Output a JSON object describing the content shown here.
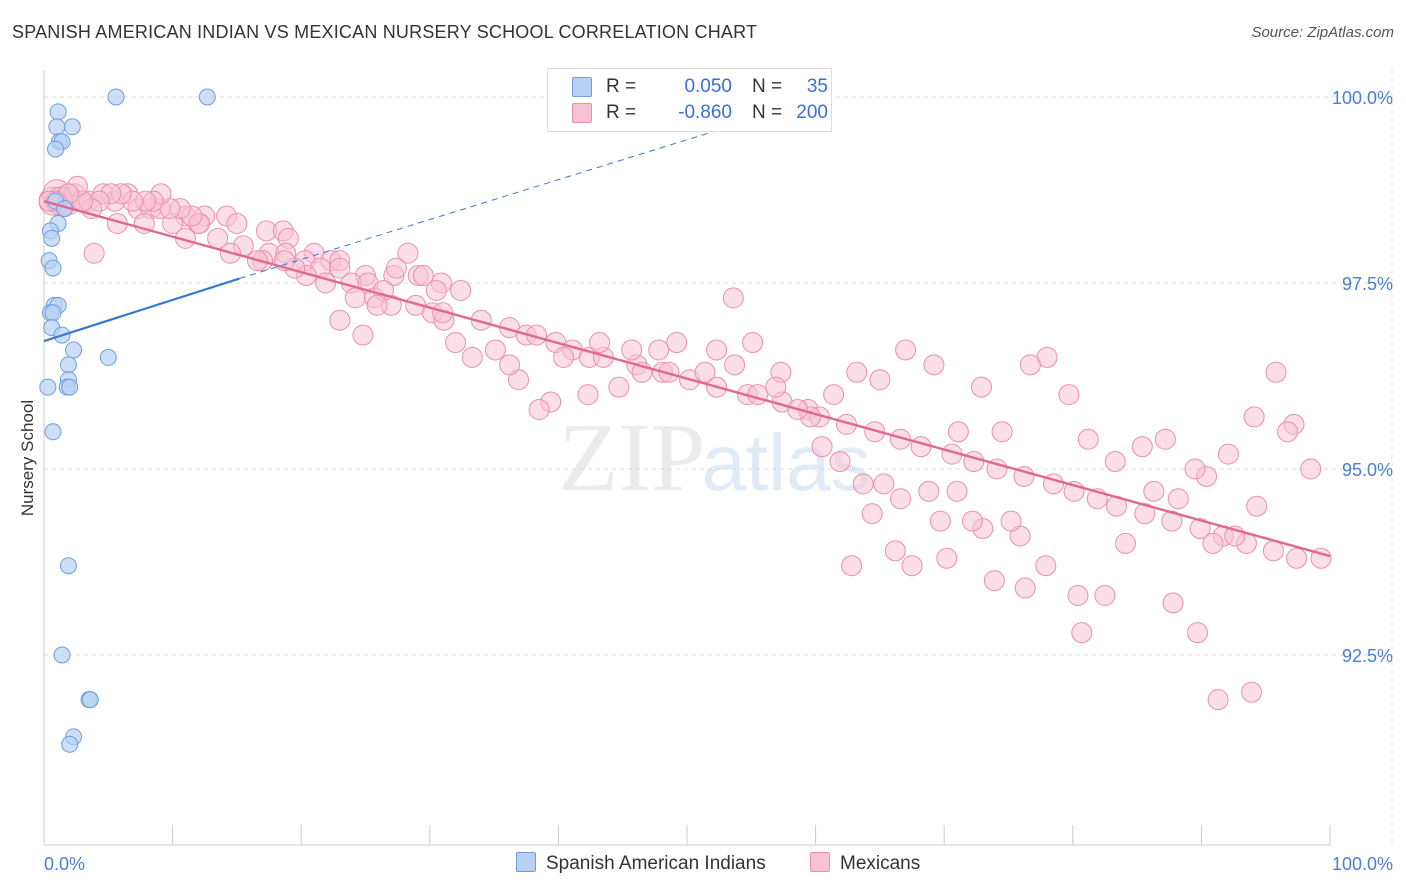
{
  "title": "SPANISH AMERICAN INDIAN VS MEXICAN NURSERY SCHOOL CORRELATION CHART",
  "source": "Source: ZipAtlas.com",
  "watermark": {
    "zip": "ZIP",
    "atlas": "atlas"
  },
  "legend": {
    "r_label": "R =",
    "n_label": "N =",
    "rows": [
      {
        "r": "0.050",
        "n": "35"
      },
      {
        "r": "-0.860",
        "n": "200"
      }
    ]
  },
  "colors": {
    "blue_fill": "#b8d1f3",
    "blue_stroke": "#6e9ee0",
    "blue_line": "#3a78d0",
    "pink_fill": "#f7c3d4",
    "pink_stroke": "#ec8fb0",
    "pink_line": "#e0688f",
    "grid": "#dddddd",
    "axis_text": "#4a7fd6"
  },
  "chart_data": {
    "type": "scatter",
    "title": "SPANISH AMERICAN INDIAN VS MEXICAN NURSERY SCHOOL CORRELATION CHART",
    "xlabel": "",
    "ylabel": "Nursery School",
    "xlim": [
      0,
      100
    ],
    "ylim": [
      90.0,
      100.4
    ],
    "x_tick_labels": [
      "0.0%",
      "100.0%"
    ],
    "y_ticks": [
      92.5,
      95.0,
      97.5,
      100.0
    ],
    "y_tick_labels": [
      "92.5%",
      "95.0%",
      "97.5%",
      "100.0%"
    ],
    "grid": true,
    "series": [
      {
        "name": "Spanish American Indians",
        "color": "blue",
        "R": 0.05,
        "N": 35,
        "trend": {
          "x0": 0,
          "y0": 96.72,
          "x1": 15.2,
          "y1": 97.56
        },
        "trend_ext": {
          "x0": 15.2,
          "y0": 97.56,
          "x1": 57,
          "y1": 99.8
        },
        "points": [
          [
            5.6,
            100.0
          ],
          [
            12.7,
            100.0
          ],
          [
            1.1,
            99.8
          ],
          [
            2.2,
            99.6
          ],
          [
            1.0,
            99.6
          ],
          [
            1.2,
            99.4
          ],
          [
            1.4,
            99.4
          ],
          [
            0.9,
            99.3
          ],
          [
            0.9,
            98.6
          ],
          [
            1.6,
            98.5
          ],
          [
            1.1,
            98.3
          ],
          [
            0.5,
            98.2
          ],
          [
            0.6,
            98.1
          ],
          [
            0.4,
            97.8
          ],
          [
            0.7,
            97.7
          ],
          [
            0.8,
            97.2
          ],
          [
            1.1,
            97.2
          ],
          [
            0.5,
            97.1
          ],
          [
            0.7,
            97.1
          ],
          [
            0.6,
            96.9
          ],
          [
            1.4,
            96.8
          ],
          [
            2.3,
            96.6
          ],
          [
            5.0,
            96.5
          ],
          [
            1.9,
            96.4
          ],
          [
            1.9,
            96.2
          ],
          [
            1.8,
            96.1
          ],
          [
            2.0,
            96.1
          ],
          [
            0.3,
            96.1
          ],
          [
            0.7,
            95.5
          ],
          [
            1.9,
            93.7
          ],
          [
            1.4,
            92.5
          ],
          [
            3.5,
            91.9
          ],
          [
            3.6,
            91.9
          ],
          [
            2.3,
            91.4
          ],
          [
            2.0,
            91.3
          ]
        ]
      },
      {
        "name": "Mexicans",
        "color": "pink",
        "R": -0.86,
        "N": 200,
        "trend": {
          "x0": 0,
          "y0": 98.6,
          "x1": 100,
          "y1": 93.83
        },
        "points": [
          [
            0.7,
            98.6
          ],
          [
            1.0,
            98.7
          ],
          [
            1.3,
            98.6
          ],
          [
            1.8,
            98.6
          ],
          [
            2.4,
            98.7
          ],
          [
            2.8,
            98.6
          ],
          [
            3.5,
            98.6
          ],
          [
            4.6,
            98.7
          ],
          [
            5.5,
            98.6
          ],
          [
            6.5,
            98.7
          ],
          [
            7.3,
            98.5
          ],
          [
            8.3,
            98.5
          ],
          [
            9.0,
            98.5
          ],
          [
            11.0,
            98.4
          ],
          [
            12.5,
            98.4
          ],
          [
            14.2,
            98.4
          ],
          [
            5.7,
            98.3
          ],
          [
            7.8,
            98.3
          ],
          [
            10.0,
            98.3
          ],
          [
            12.0,
            98.3
          ],
          [
            15.0,
            98.3
          ],
          [
            17.3,
            98.2
          ],
          [
            18.6,
            98.2
          ],
          [
            19.0,
            98.1
          ],
          [
            11.0,
            98.1
          ],
          [
            15.5,
            98.0
          ],
          [
            17.5,
            97.9
          ],
          [
            18.8,
            97.9
          ],
          [
            21.0,
            97.9
          ],
          [
            22.3,
            97.8
          ],
          [
            23.0,
            97.8
          ],
          [
            25.0,
            97.6
          ],
          [
            3.9,
            97.9
          ],
          [
            17.0,
            97.8
          ],
          [
            20.3,
            97.8
          ],
          [
            21.5,
            97.7
          ],
          [
            23.0,
            97.7
          ],
          [
            23.9,
            97.5
          ],
          [
            25.2,
            97.5
          ],
          [
            27.2,
            97.6
          ],
          [
            29.1,
            97.6
          ],
          [
            30.9,
            97.5
          ],
          [
            32.4,
            97.4
          ],
          [
            24.2,
            97.3
          ],
          [
            25.7,
            97.3
          ],
          [
            27.0,
            97.2
          ],
          [
            28.9,
            97.2
          ],
          [
            30.2,
            97.1
          ],
          [
            31.1,
            97.0
          ],
          [
            34.0,
            97.0
          ],
          [
            36.2,
            96.9
          ],
          [
            37.5,
            96.8
          ],
          [
            38.3,
            96.8
          ],
          [
            39.8,
            96.7
          ],
          [
            41.1,
            96.6
          ],
          [
            42.4,
            96.5
          ],
          [
            43.5,
            96.5
          ],
          [
            46.1,
            96.4
          ],
          [
            48.1,
            96.3
          ],
          [
            48.6,
            96.3
          ],
          [
            50.2,
            96.2
          ],
          [
            52.3,
            96.1
          ],
          [
            54.7,
            96.0
          ],
          [
            55.5,
            96.0
          ],
          [
            57.4,
            95.9
          ],
          [
            59.4,
            95.8
          ],
          [
            60.3,
            95.7
          ],
          [
            62.4,
            95.6
          ],
          [
            64.6,
            95.5
          ],
          [
            66.6,
            95.4
          ],
          [
            68.2,
            95.3
          ],
          [
            70.6,
            95.2
          ],
          [
            72.3,
            95.1
          ],
          [
            74.1,
            95.0
          ],
          [
            76.2,
            94.9
          ],
          [
            78.5,
            94.8
          ],
          [
            80.1,
            94.7
          ],
          [
            81.9,
            94.6
          ],
          [
            83.4,
            94.5
          ],
          [
            85.6,
            94.4
          ],
          [
            87.7,
            94.3
          ],
          [
            89.9,
            94.2
          ],
          [
            91.7,
            94.1
          ],
          [
            93.5,
            94.0
          ],
          [
            95.6,
            93.9
          ],
          [
            97.4,
            93.8
          ],
          [
            99.3,
            93.8
          ],
          [
            93.9,
            92.0
          ],
          [
            91.3,
            91.9
          ],
          [
            89.7,
            92.8
          ],
          [
            87.8,
            93.2
          ],
          [
            82.5,
            93.3
          ],
          [
            80.7,
            92.8
          ],
          [
            80.4,
            93.3
          ],
          [
            76.3,
            93.4
          ],
          [
            75.9,
            94.1
          ],
          [
            75.2,
            94.3
          ],
          [
            73.0,
            94.2
          ],
          [
            72.2,
            94.3
          ],
          [
            71.0,
            94.7
          ],
          [
            69.7,
            94.3
          ],
          [
            68.8,
            94.7
          ],
          [
            66.6,
            94.6
          ],
          [
            65.3,
            94.8
          ],
          [
            63.7,
            94.8
          ],
          [
            61.9,
            95.1
          ],
          [
            60.5,
            95.3
          ],
          [
            59.6,
            95.7
          ],
          [
            58.6,
            95.8
          ],
          [
            57.3,
            96.3
          ],
          [
            56.9,
            96.1
          ],
          [
            55.1,
            96.7
          ],
          [
            53.7,
            96.4
          ],
          [
            53.6,
            97.3
          ],
          [
            52.3,
            96.6
          ],
          [
            51.4,
            96.3
          ],
          [
            49.2,
            96.7
          ],
          [
            47.8,
            96.6
          ],
          [
            46.5,
            96.3
          ],
          [
            45.7,
            96.6
          ],
          [
            44.7,
            96.1
          ],
          [
            43.2,
            96.7
          ],
          [
            42.3,
            96.0
          ],
          [
            40.4,
            96.5
          ],
          [
            39.4,
            95.9
          ],
          [
            38.5,
            95.8
          ],
          [
            36.9,
            96.2
          ],
          [
            36.2,
            96.4
          ],
          [
            35.1,
            96.6
          ],
          [
            33.3,
            96.5
          ],
          [
            32.0,
            96.7
          ],
          [
            31.0,
            97.1
          ],
          [
            30.5,
            97.4
          ],
          [
            29.5,
            97.6
          ],
          [
            28.3,
            97.9
          ],
          [
            27.4,
            97.7
          ],
          [
            26.4,
            97.4
          ],
          [
            25.9,
            97.2
          ],
          [
            24.8,
            96.8
          ],
          [
            23.0,
            97.0
          ],
          [
            21.9,
            97.5
          ],
          [
            20.4,
            97.6
          ],
          [
            19.5,
            97.7
          ],
          [
            18.7,
            97.8
          ],
          [
            16.6,
            97.8
          ],
          [
            14.5,
            97.9
          ],
          [
            13.5,
            98.1
          ],
          [
            12.1,
            98.3
          ],
          [
            11.5,
            98.4
          ],
          [
            10.6,
            98.5
          ],
          [
            9.8,
            98.5
          ],
          [
            9.1,
            98.7
          ],
          [
            8.5,
            98.6
          ],
          [
            7.9,
            98.6
          ],
          [
            6.9,
            98.6
          ],
          [
            6.0,
            98.7
          ],
          [
            5.2,
            98.7
          ],
          [
            4.3,
            98.6
          ],
          [
            3.7,
            98.5
          ],
          [
            3.0,
            98.6
          ],
          [
            2.6,
            98.8
          ],
          [
            1.9,
            98.7
          ],
          [
            0.9,
            98.6
          ],
          [
            0.4,
            98.6
          ],
          [
            62.8,
            93.7
          ],
          [
            64.4,
            94.4
          ],
          [
            66.2,
            93.9
          ],
          [
            67.5,
            93.7
          ],
          [
            70.2,
            93.8
          ],
          [
            73.9,
            93.5
          ],
          [
            77.9,
            93.7
          ],
          [
            84.1,
            94.0
          ],
          [
            86.3,
            94.7
          ],
          [
            88.2,
            94.6
          ],
          [
            90.4,
            94.9
          ],
          [
            92.1,
            95.2
          ],
          [
            94.1,
            95.7
          ],
          [
            95.8,
            96.3
          ],
          [
            97.2,
            95.6
          ],
          [
            98.5,
            95.0
          ],
          [
            96.7,
            95.5
          ],
          [
            94.3,
            94.5
          ],
          [
            92.6,
            94.1
          ],
          [
            90.9,
            94.0
          ],
          [
            89.5,
            95.0
          ],
          [
            87.2,
            95.4
          ],
          [
            85.4,
            95.3
          ],
          [
            83.3,
            95.1
          ],
          [
            81.2,
            95.4
          ],
          [
            79.7,
            96.0
          ],
          [
            78.0,
            96.5
          ],
          [
            76.7,
            96.4
          ],
          [
            74.5,
            95.5
          ],
          [
            72.9,
            96.1
          ],
          [
            71.1,
            95.5
          ],
          [
            69.2,
            96.4
          ],
          [
            67.0,
            96.6
          ],
          [
            65.0,
            96.2
          ],
          [
            63.2,
            96.3
          ],
          [
            61.4,
            96.0
          ]
        ]
      }
    ]
  }
}
